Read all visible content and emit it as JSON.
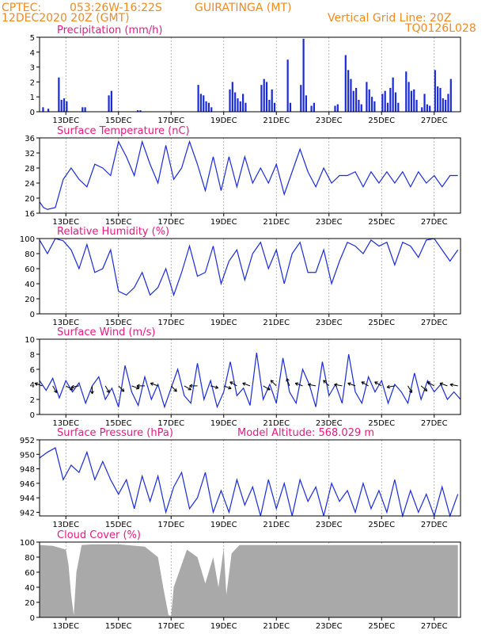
{
  "header": {
    "source": "CPTEC:",
    "coords": "053:26W-16:22S",
    "station": "GUIRATINGA (MT)",
    "run": "12DEC2020 20Z (GMT)",
    "grid_note": "Vertical Grid Line: 20Z",
    "model": "TQ0126L028",
    "altitude_label": "Model Altitude: 568.029 m"
  },
  "colors": {
    "header": "#f08a24",
    "titles": "#e8197f",
    "series": "#1a2bd6",
    "cloud": "#a9a9a9",
    "arrows": "#000000"
  },
  "chart_data": [
    {
      "type": "bar",
      "title": "Precipitation (mm/h)",
      "ylim": [
        0,
        5
      ],
      "yticks": [
        0,
        1,
        2,
        3,
        4,
        5
      ],
      "x": [
        0.1,
        0.3,
        0.7,
        0.8,
        0.9,
        1.0,
        1.6,
        1.7,
        2.6,
        2.7,
        3.7,
        3.8,
        6.0,
        6.1,
        6.2,
        6.3,
        6.4,
        6.5,
        7.2,
        7.3,
        7.4,
        7.5,
        7.6,
        7.7,
        7.8,
        8.4,
        8.5,
        8.6,
        8.7,
        8.8,
        8.9,
        9.4,
        9.5,
        9.9,
        10.0,
        10.1,
        10.3,
        10.4,
        11.2,
        11.3,
        11.6,
        11.7,
        11.8,
        11.9,
        12.0,
        12.1,
        12.2,
        12.4,
        12.5,
        12.6,
        12.7,
        13.0,
        13.1,
        13.2,
        13.3,
        13.4,
        13.5,
        13.6,
        13.9,
        14.0,
        14.1,
        14.2,
        14.3,
        14.5,
        14.6,
        14.7,
        14.8,
        15.0,
        15.1,
        15.2,
        15.3,
        15.4,
        15.5,
        15.6
      ],
      "values": [
        0.3,
        0.2,
        2.3,
        0.8,
        0.9,
        0.7,
        0.3,
        0.3,
        1.1,
        1.4,
        0.1,
        0.1,
        1.8,
        1.2,
        1.1,
        0.7,
        0.6,
        0.3,
        1.5,
        2.0,
        1.3,
        0.9,
        0.7,
        1.2,
        0.6,
        1.8,
        2.2,
        2.0,
        0.8,
        1.5,
        0.6,
        3.5,
        0.6,
        1.8,
        4.9,
        1.1,
        0.4,
        0.6,
        0.4,
        0.5,
        3.8,
        2.8,
        2.2,
        1.4,
        1.6,
        0.8,
        0.5,
        2.0,
        1.5,
        1.0,
        0.7,
        1.2,
        1.4,
        0.6,
        1.6,
        2.3,
        1.3,
        0.6,
        2.7,
        2.0,
        1.4,
        1.5,
        0.8,
        0.3,
        1.2,
        0.5,
        0.4,
        2.8,
        1.7,
        1.6,
        0.9,
        0.8,
        1.2,
        2.2
      ]
    },
    {
      "type": "line",
      "title": "Surface Temperature (nC)",
      "ylim": [
        16,
        36
      ],
      "yticks": [
        16,
        20,
        24,
        28,
        32,
        36
      ],
      "x": [
        0,
        0.15,
        0.3,
        0.6,
        0.9,
        1.2,
        1.5,
        1.8,
        2.1,
        2.4,
        2.7,
        3.0,
        3.3,
        3.6,
        3.9,
        4.2,
        4.5,
        4.8,
        5.1,
        5.4,
        5.7,
        6.0,
        6.3,
        6.6,
        6.9,
        7.2,
        7.5,
        7.8,
        8.1,
        8.4,
        8.7,
        9.0,
        9.3,
        9.6,
        9.9,
        10.2,
        10.5,
        10.8,
        11.1,
        11.4,
        11.7,
        12.0,
        12.3,
        12.6,
        12.9,
        13.2,
        13.5,
        13.8,
        14.1,
        14.4,
        14.7,
        15.0,
        15.3,
        15.6,
        15.9
      ],
      "values": [
        19,
        17.5,
        17,
        17.5,
        25,
        28,
        25,
        23,
        29,
        28,
        26,
        35,
        31,
        26,
        35,
        29,
        24,
        34,
        25,
        28,
        35,
        29,
        22,
        31,
        22,
        31,
        23,
        31,
        24,
        28,
        24,
        29,
        21,
        27,
        33,
        27,
        23,
        28,
        24,
        26,
        26,
        27,
        23,
        27,
        24,
        27,
        24,
        27,
        23,
        27,
        24,
        26,
        23,
        26,
        26
      ]
    },
    {
      "type": "line",
      "title": "Relative Humidity (%)",
      "ylim": [
        0,
        100
      ],
      "yticks": [
        0,
        20,
        40,
        60,
        80,
        100
      ],
      "x": [
        0,
        0.3,
        0.6,
        0.9,
        1.2,
        1.5,
        1.8,
        2.1,
        2.4,
        2.7,
        3.0,
        3.3,
        3.6,
        3.9,
        4.2,
        4.5,
        4.8,
        5.1,
        5.4,
        5.7,
        6.0,
        6.3,
        6.6,
        6.9,
        7.2,
        7.5,
        7.8,
        8.1,
        8.4,
        8.7,
        9.0,
        9.3,
        9.6,
        9.9,
        10.2,
        10.5,
        10.8,
        11.1,
        11.4,
        11.7,
        12.0,
        12.3,
        12.6,
        12.9,
        13.2,
        13.5,
        13.8,
        14.1,
        14.4,
        14.7,
        15.0,
        15.3,
        15.6,
        15.9
      ],
      "values": [
        98,
        80,
        100,
        97,
        85,
        60,
        92,
        55,
        60,
        85,
        30,
        25,
        35,
        55,
        25,
        35,
        60,
        25,
        55,
        90,
        50,
        55,
        90,
        40,
        70,
        85,
        45,
        80,
        95,
        60,
        85,
        40,
        80,
        95,
        55,
        55,
        85,
        40,
        70,
        95,
        90,
        80,
        98,
        90,
        95,
        65,
        95,
        90,
        75,
        98,
        100,
        85,
        70,
        85
      ]
    },
    {
      "type": "line",
      "title": "Surface Wind (m/s)",
      "ylim": [
        0,
        10
      ],
      "yticks": [
        0,
        2,
        4,
        6,
        8,
        10
      ],
      "x": [
        0,
        0.25,
        0.5,
        0.75,
        1.0,
        1.25,
        1.5,
        1.75,
        2.0,
        2.25,
        2.5,
        2.75,
        3.0,
        3.25,
        3.5,
        3.75,
        4.0,
        4.25,
        4.5,
        4.75,
        5.0,
        5.25,
        5.5,
        5.75,
        6.0,
        6.25,
        6.5,
        6.75,
        7.0,
        7.25,
        7.5,
        7.75,
        8.0,
        8.25,
        8.5,
        8.75,
        9.0,
        9.25,
        9.5,
        9.75,
        10.0,
        10.25,
        10.5,
        10.75,
        11.0,
        11.25,
        11.5,
        11.75,
        12.0,
        12.25,
        12.5,
        12.75,
        13.0,
        13.25,
        13.5,
        13.75,
        14.0,
        14.25,
        14.5,
        14.75,
        15.0,
        15.25,
        15.5,
        15.75,
        16.0
      ],
      "values": [
        4.5,
        3.2,
        4.8,
        2.2,
        4.5,
        3.0,
        4.2,
        1.5,
        3.8,
        5.0,
        2.0,
        3.5,
        1.0,
        6.5,
        3.0,
        1.2,
        5.0,
        2.0,
        4.0,
        1.0,
        3.5,
        6.0,
        2.5,
        1.5,
        6.8,
        2.0,
        4.5,
        1.0,
        3.0,
        7.0,
        2.5,
        3.5,
        1.2,
        8.2,
        2.0,
        4.0,
        1.5,
        7.5,
        3.0,
        1.5,
        6.0,
        4.0,
        1.0,
        7.0,
        2.5,
        4.0,
        1.5,
        8.0,
        3.0,
        1.5,
        5.0,
        3.0,
        4.5,
        1.5,
        4.0,
        3.0,
        1.5,
        5.5,
        2.0,
        4.5,
        3.0,
        4.0,
        2.0,
        3.0,
        2.0
      ],
      "arrows_at": [
        0.1,
        0.5,
        1.0,
        1.5,
        2.0,
        2.5,
        3.0,
        3.5,
        4.0,
        4.5,
        5.0,
        5.5,
        6.0,
        6.5,
        7.0,
        7.5,
        8.0,
        8.5,
        9.0,
        9.5,
        10.0,
        10.5,
        11.0,
        11.5,
        12.0,
        12.5,
        13.0,
        13.5,
        14.0,
        14.5,
        15.0,
        15.5,
        15.9
      ],
      "arrow_dir_deg": [
        200,
        60,
        30,
        170,
        90,
        60,
        45,
        20,
        180,
        200,
        45,
        30,
        180,
        15,
        20,
        210,
        200,
        30,
        225,
        250,
        200,
        190,
        225,
        190,
        200,
        210,
        210,
        170,
        60,
        40,
        210,
        200,
        190
      ]
    },
    {
      "type": "line",
      "title": "Surface Pressure (hPa)",
      "ylim": [
        941.5,
        952
      ],
      "yticks": [
        942,
        944,
        946,
        948,
        950,
        952
      ],
      "x": [
        0,
        0.3,
        0.6,
        0.9,
        1.2,
        1.5,
        1.8,
        2.1,
        2.4,
        2.7,
        3.0,
        3.3,
        3.6,
        3.9,
        4.2,
        4.5,
        4.8,
        5.1,
        5.4,
        5.7,
        6.0,
        6.3,
        6.6,
        6.9,
        7.2,
        7.5,
        7.8,
        8.1,
        8.4,
        8.7,
        9.0,
        9.3,
        9.6,
        9.9,
        10.2,
        10.5,
        10.8,
        11.1,
        11.4,
        11.7,
        12.0,
        12.3,
        12.6,
        12.9,
        13.2,
        13.5,
        13.8,
        14.1,
        14.4,
        14.7,
        15.0,
        15.3,
        15.6,
        15.9
      ],
      "values": [
        949.5,
        950.3,
        950.9,
        946.5,
        948.5,
        947.5,
        950.3,
        946.5,
        949.0,
        946.5,
        944.5,
        946.5,
        942.5,
        947.0,
        943.5,
        947.0,
        942.0,
        945.5,
        947.5,
        942.5,
        944.0,
        947.5,
        942.0,
        945.0,
        942.0,
        946.5,
        943.0,
        945.5,
        941.5,
        946.5,
        942.5,
        946.0,
        941.5,
        946.5,
        943.5,
        945.5,
        941.5,
        946.0,
        943.5,
        945.0,
        942.0,
        946.0,
        942.5,
        945.0,
        942.0,
        946.5,
        941.5,
        945.0,
        942.0,
        944.5,
        941.5,
        945.5,
        941.5,
        944.5
      ]
    },
    {
      "type": "area",
      "title": "Cloud Cover (%)",
      "ylim": [
        0,
        100
      ],
      "yticks": [
        0,
        20,
        40,
        60,
        80,
        100
      ],
      "x": [
        0,
        0.5,
        1.0,
        1.1,
        1.2,
        1.3,
        1.4,
        1.6,
        2.0,
        3.0,
        4.0,
        4.5,
        4.7,
        4.9,
        5.0,
        5.1,
        5.3,
        5.6,
        6.0,
        6.3,
        6.6,
        6.8,
        7.0,
        7.1,
        7.3,
        7.6,
        8.0,
        9.0,
        10.0,
        11.0,
        12.0,
        13.0,
        14.0,
        15.0,
        15.9
      ],
      "values": [
        96,
        95,
        90,
        70,
        30,
        3,
        60,
        96,
        97,
        97,
        94,
        80,
        40,
        3,
        2,
        40,
        60,
        90,
        80,
        45,
        80,
        40,
        92,
        30,
        85,
        96,
        96,
        96,
        96,
        96,
        96,
        96,
        96,
        96,
        96
      ]
    }
  ],
  "x_axis": {
    "days_to_label": [
      1,
      3,
      5,
      7,
      9,
      11,
      13,
      15
    ],
    "tick_labels": [
      "13DEC",
      "15DEC",
      "17DEC",
      "19DEC",
      "21DEC",
      "23DEC",
      "25DEC",
      "27DEC"
    ]
  }
}
